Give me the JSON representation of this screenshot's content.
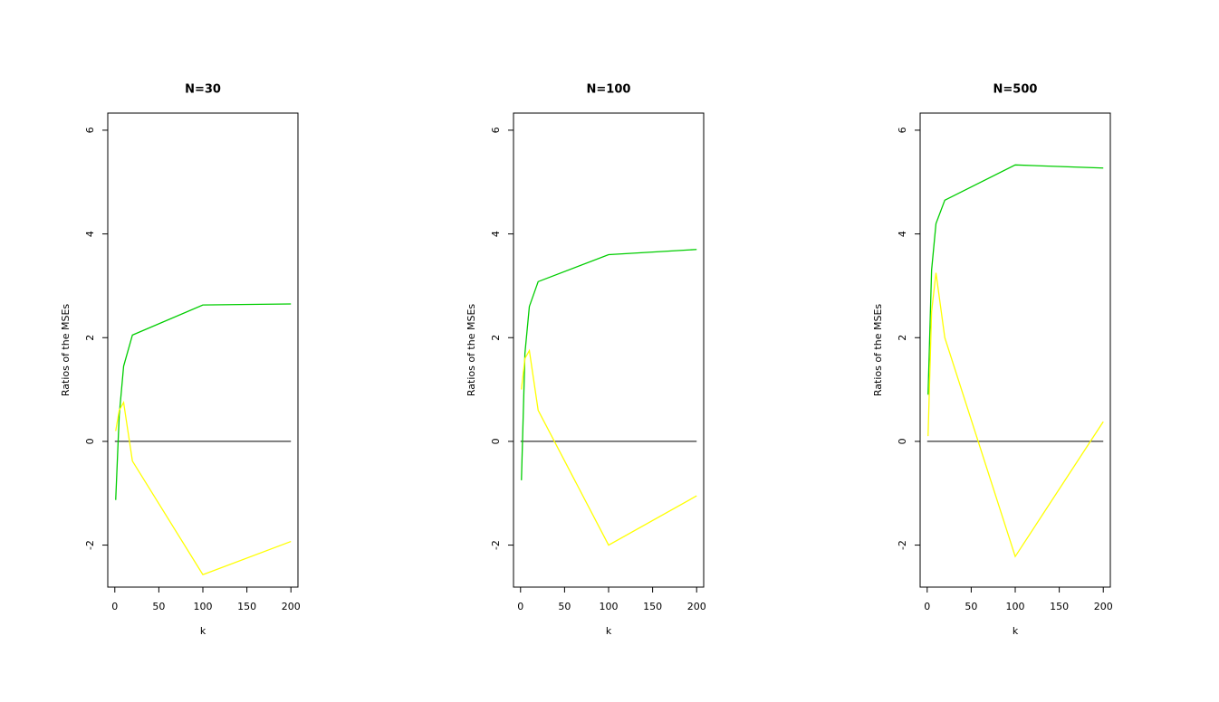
{
  "chart_data": [
    {
      "type": "line",
      "title": "N=30",
      "xlabel": "k",
      "ylabel": "Ratios of the MSEs",
      "x": [
        1,
        5,
        10,
        20,
        100,
        200
      ],
      "series": [
        {
          "color": "#00cd00",
          "values": [
            -1.13,
            0.5,
            1.45,
            2.05,
            2.63,
            2.65
          ]
        },
        {
          "color": "#ffff00",
          "values": [
            0.2,
            0.6,
            0.75,
            -0.38,
            -2.57,
            -1.93
          ]
        }
      ],
      "hline": {
        "y": 0,
        "x": [
          0,
          200
        ],
        "color": "#000000"
      },
      "xlim": [
        -8,
        208
      ],
      "ylim": [
        -2.81,
        6.33
      ],
      "xticks": [
        0,
        50,
        100,
        150,
        200
      ],
      "yticks": [
        -2,
        0,
        2,
        4,
        6
      ]
    },
    {
      "type": "line",
      "title": "N=100",
      "xlabel": "k",
      "ylabel": "Ratios of the MSEs",
      "x": [
        1,
        5,
        10,
        20,
        100,
        200
      ],
      "series": [
        {
          "color": "#00cd00",
          "values": [
            -0.75,
            1.7,
            2.6,
            3.08,
            3.6,
            3.7
          ]
        },
        {
          "color": "#ffff00",
          "values": [
            1.0,
            1.6,
            1.75,
            0.6,
            -2.0,
            -1.05
          ]
        }
      ],
      "hline": {
        "y": 0,
        "x": [
          0,
          200
        ],
        "color": "#000000"
      },
      "xlim": [
        -8,
        208
      ],
      "ylim": [
        -2.81,
        6.33
      ],
      "xticks": [
        0,
        50,
        100,
        150,
        200
      ],
      "yticks": [
        -2,
        0,
        2,
        4,
        6
      ]
    },
    {
      "type": "line",
      "title": "N=500",
      "xlabel": "k",
      "ylabel": "Ratios of the MSEs",
      "x": [
        1,
        5,
        10,
        20,
        100,
        200
      ],
      "series": [
        {
          "color": "#00cd00",
          "values": [
            0.9,
            3.3,
            4.2,
            4.65,
            5.33,
            5.27
          ]
        },
        {
          "color": "#ffff00",
          "values": [
            0.1,
            2.5,
            3.25,
            2.0,
            -2.22,
            0.38
          ]
        }
      ],
      "hline": {
        "y": 0,
        "x": [
          0,
          200
        ],
        "color": "#000000"
      },
      "xlim": [
        -8,
        208
      ],
      "ylim": [
        -2.81,
        6.33
      ],
      "xticks": [
        0,
        50,
        100,
        150,
        200
      ],
      "yticks": [
        -2,
        0,
        2,
        4,
        6
      ]
    }
  ]
}
